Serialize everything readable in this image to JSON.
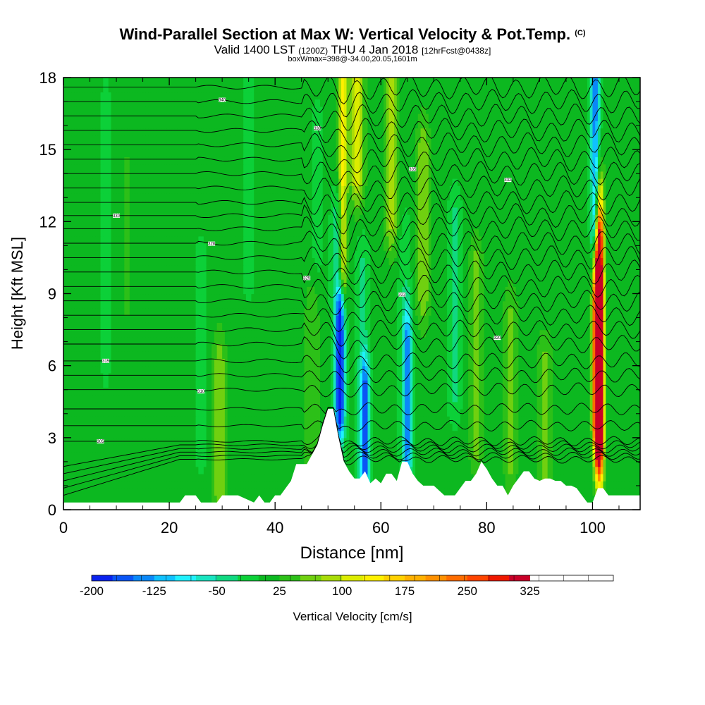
{
  "title": {
    "main": "Wind-Parallel Section at Max W: Vertical Velocity & Pot.Temp.",
    "copyright": "(C)",
    "valid_prefix": "Valid 1400 LST",
    "valid_utc": "(1200Z)",
    "valid_date": "THU 4 Jan 2018",
    "forecast": "[12hrFcst@0438z]",
    "box_info": "boxWmax=398@-34.00,20.05,1601m"
  },
  "chart_data": {
    "type": "heatmap",
    "xlabel": "Distance [nm]",
    "ylabel": "Height [Kft MSL]",
    "xlim": [
      0,
      109
    ],
    "ylim": [
      0,
      18
    ],
    "xticks": [
      0,
      20,
      40,
      60,
      80,
      100
    ],
    "yticks": [
      0,
      3,
      6,
      9,
      12,
      15,
      18
    ],
    "colorbar": {
      "label": "Vertical Velocity [cm/s]",
      "min": -200,
      "max": 400,
      "step": 25,
      "ticks": [
        -200,
        -125,
        -50,
        25,
        100,
        175,
        250,
        325
      ],
      "colors": [
        "#0a22ee",
        "#0a55f5",
        "#0a88f8",
        "#10c0ff",
        "#20f0ff",
        "#18e4c0",
        "#10d880",
        "#0cd038",
        "#0cb820",
        "#2cc018",
        "#70d010",
        "#a8dc08",
        "#dcec00",
        "#fff000",
        "#ffd000",
        "#ffb000",
        "#ff9000",
        "#ff6c00",
        "#ff4400",
        "#ee1800",
        "#c80028"
      ]
    },
    "background_w": 10,
    "w_features": [
      {
        "x": 101,
        "w": 370,
        "z_low": 4,
        "z_high": 8.5
      },
      {
        "x": 101.2,
        "w": 250,
        "z_low": 3,
        "z_high": 11
      },
      {
        "x": 101.3,
        "w": 130,
        "z_low": 2,
        "z_high": 13
      },
      {
        "x": 52.3,
        "w": -175,
        "z_low": 4.5,
        "z_high": 8
      },
      {
        "x": 52.0,
        "w": -60,
        "z_low": 3.5,
        "z_high": 12
      },
      {
        "x": 52.8,
        "w": 130,
        "z_low": 10,
        "z_high": 18
      },
      {
        "x": 57.0,
        "w": -150,
        "z_low": 1.5,
        "z_high": 5
      },
      {
        "x": 56.5,
        "w": -40,
        "z_low": 2,
        "z_high": 10
      },
      {
        "x": 65.0,
        "w": -130,
        "z_low": 2,
        "z_high": 7
      },
      {
        "x": 64.5,
        "w": -30,
        "z_low": 3,
        "z_high": 11
      },
      {
        "x": 100.5,
        "w": -150,
        "z_low": 12,
        "z_high": 18
      },
      {
        "x": 55.5,
        "w": 100,
        "z_low": 14,
        "z_high": 18
      },
      {
        "x": 62.0,
        "w": 70,
        "z_low": 12,
        "z_high": 18
      },
      {
        "x": 68.0,
        "w": 60,
        "z_low": 9,
        "z_high": 15
      },
      {
        "x": 74.0,
        "w": -40,
        "z_low": 5,
        "z_high": 12
      },
      {
        "x": 78.0,
        "w": 55,
        "z_low": 3,
        "z_high": 10
      },
      {
        "x": 84.5,
        "w": 45,
        "z_low": 2,
        "z_high": 8
      },
      {
        "x": 91.0,
        "w": 50,
        "z_low": 0.5,
        "z_high": 6
      },
      {
        "x": 29.5,
        "w": 60,
        "z_low": 1,
        "z_high": 6
      },
      {
        "x": 26.0,
        "w": -25,
        "z_low": 3,
        "z_high": 10
      },
      {
        "x": 35.0,
        "w": -25,
        "z_low": 10,
        "z_high": 17
      },
      {
        "x": 47.0,
        "w": 40,
        "z_low": 2,
        "z_high": 8
      },
      {
        "x": 8.0,
        "w": -15,
        "z_low": 6,
        "z_high": 17
      },
      {
        "x": 12.0,
        "w": 20,
        "z_low": 9,
        "z_high": 14
      },
      {
        "x": 48.0,
        "w": -20,
        "z_low": 11,
        "z_high": 16
      }
    ],
    "terrain_x": [
      0,
      10,
      22,
      23,
      25,
      26,
      29,
      30,
      33,
      36,
      37,
      38,
      39,
      40,
      41,
      42,
      43,
      44,
      45,
      46,
      47,
      48,
      49,
      50,
      51,
      52,
      53,
      54,
      55,
      56,
      57,
      58,
      59,
      60,
      61,
      62,
      63,
      64,
      65,
      66,
      67,
      68,
      69,
      70,
      71,
      72,
      73,
      74,
      75,
      76,
      77,
      78,
      79,
      80,
      81,
      82,
      83,
      84,
      85,
      86,
      87,
      88,
      89,
      90,
      91,
      92,
      93,
      94,
      95,
      96,
      97,
      98,
      99,
      100,
      101,
      102,
      103,
      104,
      105,
      106,
      107,
      108,
      109
    ],
    "terrain_y": [
      0.3,
      0.3,
      0.3,
      0.6,
      0.6,
      0.3,
      0.3,
      0.6,
      0.6,
      0.3,
      0.6,
      0.3,
      0.3,
      0.6,
      0.6,
      0.9,
      1.2,
      1.9,
      1.9,
      1.9,
      2.3,
      2.7,
      3.5,
      4.2,
      4.2,
      3.0,
      2.0,
      1.6,
      1.3,
      1.3,
      1.6,
      1.1,
      1.3,
      1.1,
      1.5,
      1.5,
      1.2,
      2.0,
      2.0,
      1.5,
      1.2,
      1.0,
      1.0,
      1.0,
      0.8,
      0.6,
      0.6,
      0.6,
      0.9,
      1.2,
      1.2,
      1.5,
      2.0,
      1.7,
      1.3,
      1.0,
      1.0,
      0.6,
      1.0,
      1.3,
      1.6,
      1.6,
      1.3,
      1.2,
      1.3,
      1.3,
      1.2,
      1.2,
      1.0,
      1.0,
      0.9,
      0.6,
      0.3,
      0.3,
      0.9,
      0.9,
      0.6,
      0.6,
      0.6,
      0.6,
      0.6,
      0.6,
      0.6
    ],
    "isentropes": [
      {
        "label": "",
        "z": 2.1,
        "lowcap": 0.6
      },
      {
        "label": "",
        "z": 2.25,
        "lowcap": 0.9
      },
      {
        "label": "",
        "z": 2.4,
        "lowcap": 1.2
      },
      {
        "label": "",
        "z": 2.55,
        "lowcap": 1.5
      },
      {
        "label": "",
        "z": 2.7,
        "lowcap": 1.8
      },
      {
        "label": "305",
        "z": 2.85
      },
      {
        "label": "",
        "z": 3.5
      },
      {
        "label": "",
        "z": 4.2
      },
      {
        "label": "310",
        "z": 5.0
      },
      {
        "label": "",
        "z": 5.6
      },
      {
        "label": "315",
        "z": 6.2
      },
      {
        "label": "",
        "z": 6.9
      },
      {
        "label": "320",
        "z": 7.5
      },
      {
        "label": "",
        "z": 8.1
      },
      {
        "label": "322",
        "z": 8.7
      },
      {
        "label": "",
        "z": 9.3
      },
      {
        "label": "325",
        "z": 9.9
      },
      {
        "label": "",
        "z": 10.5
      },
      {
        "label": "328",
        "z": 11.1
      },
      {
        "label": "",
        "z": 11.7
      },
      {
        "label": "330",
        "z": 12.25
      },
      {
        "label": "",
        "z": 12.8
      },
      {
        "label": "332",
        "z": 13.4
      },
      {
        "label": "",
        "z": 14.0
      },
      {
        "label": "335",
        "z": 14.6
      },
      {
        "label": "",
        "z": 15.2
      },
      {
        "label": "338",
        "z": 15.8
      },
      {
        "label": "",
        "z": 16.4
      },
      {
        "label": "340",
        "z": 17.0
      },
      {
        "label": "",
        "z": 17.6
      }
    ]
  }
}
